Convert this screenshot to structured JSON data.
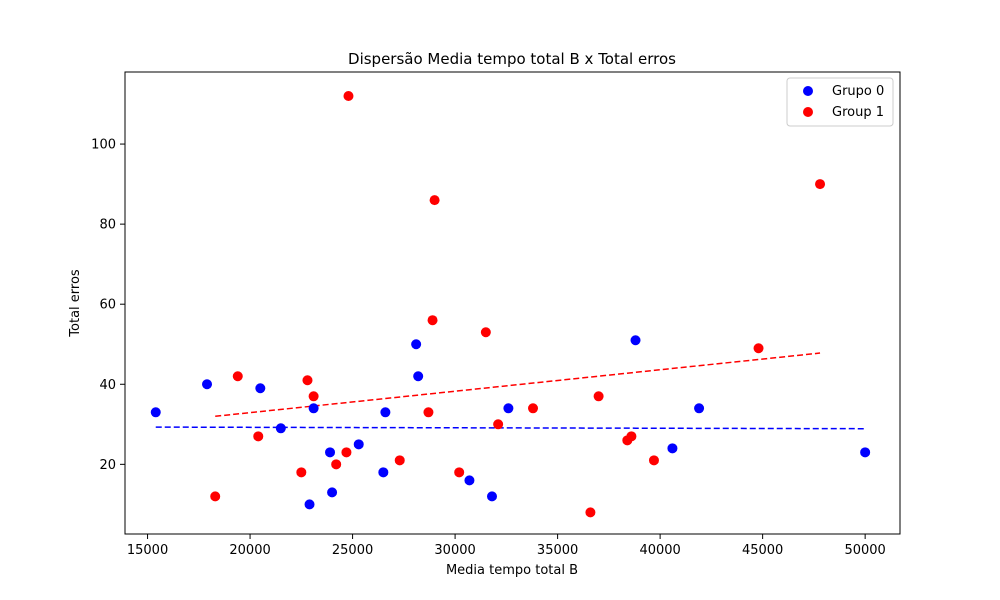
{
  "chart_data": {
    "type": "scatter",
    "title": "Dispersão Media tempo total B x Total erros",
    "xlabel": "Media tempo total B",
    "ylabel": "Total erros",
    "xlim": [
      13900,
      51700
    ],
    "ylim": [
      2.6,
      118
    ],
    "xticks": [
      15000,
      20000,
      25000,
      30000,
      35000,
      40000,
      45000,
      50000
    ],
    "yticks": [
      20,
      40,
      60,
      80,
      100
    ],
    "legend_position": "top-right",
    "grid": false,
    "series": [
      {
        "name": "Grupo 0",
        "color": "#0000ff",
        "points": [
          [
            15400,
            33
          ],
          [
            17900,
            40
          ],
          [
            20500,
            39
          ],
          [
            21500,
            29
          ],
          [
            22900,
            10
          ],
          [
            23100,
            34
          ],
          [
            23900,
            23
          ],
          [
            24000,
            13
          ],
          [
            25300,
            25
          ],
          [
            26500,
            18
          ],
          [
            26600,
            33
          ],
          [
            28100,
            50
          ],
          [
            28200,
            42
          ],
          [
            30700,
            16
          ],
          [
            31800,
            12
          ],
          [
            32600,
            34
          ],
          [
            38800,
            51
          ],
          [
            40600,
            24
          ],
          [
            41900,
            34
          ],
          [
            50000,
            23
          ]
        ],
        "trend": {
          "x": [
            15400,
            50000
          ],
          "y": [
            29.3,
            28.9
          ]
        }
      },
      {
        "name": "Group 1",
        "color": "#ff0000",
        "points": [
          [
            18300,
            12
          ],
          [
            19400,
            42
          ],
          [
            20400,
            27
          ],
          [
            22500,
            18
          ],
          [
            22800,
            41
          ],
          [
            23100,
            37
          ],
          [
            24200,
            20
          ],
          [
            24700,
            23
          ],
          [
            24800,
            112
          ],
          [
            27300,
            21
          ],
          [
            28700,
            33
          ],
          [
            28900,
            56
          ],
          [
            29000,
            86
          ],
          [
            30200,
            18
          ],
          [
            31500,
            53
          ],
          [
            32100,
            30
          ],
          [
            33800,
            34
          ],
          [
            36600,
            8
          ],
          [
            37000,
            37
          ],
          [
            38400,
            26
          ],
          [
            38600,
            27
          ],
          [
            39700,
            21
          ],
          [
            44800,
            49
          ],
          [
            47800,
            90
          ]
        ],
        "trend": {
          "x": [
            18300,
            47800
          ],
          "y": [
            32.0,
            47.8
          ]
        }
      }
    ]
  }
}
